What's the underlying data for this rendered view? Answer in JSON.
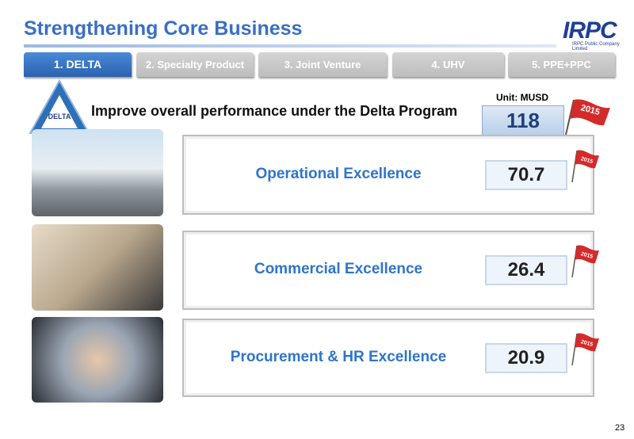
{
  "header": {
    "title": "Strengthening Core Business",
    "logo": "IRPC",
    "logo_caption": "IRPC Public Company Limited"
  },
  "tabs": [
    "1. DELTA",
    "2. Specialty Product",
    "3. Joint Venture",
    "4. UHV",
    "5. PPE+PPC"
  ],
  "badge": "DELTA",
  "subtitle": "Improve overall performance under the Delta Program",
  "unit": "Unit: MUSD",
  "total": {
    "value": 118,
    "flag": "2015"
  },
  "items": [
    {
      "label": "Operational Excellence",
      "value": 70.7,
      "flag": "2015"
    },
    {
      "label": "Commercial Excellence",
      "value": 26.4,
      "flag": "2015"
    },
    {
      "label": "Procurement & HR Excellence",
      "value": 20.9,
      "flag": "2015"
    }
  ],
  "page_number": 23
}
